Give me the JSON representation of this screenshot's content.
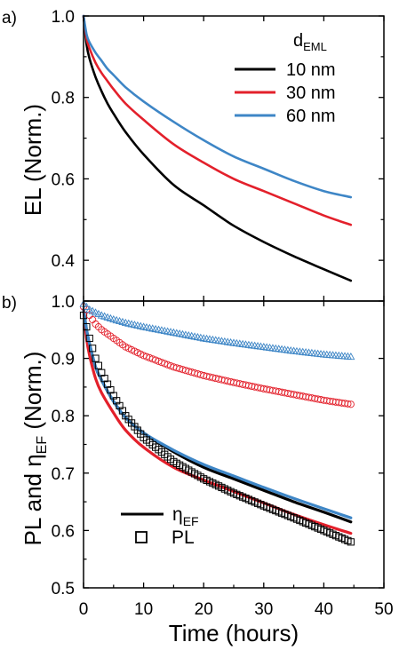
{
  "colors": {
    "10": "#000000",
    "30": "#e3202b",
    "60": "#3e86c6",
    "axis": "#000000"
  },
  "chart_data": [
    {
      "type": "line",
      "panel_label": "a)",
      "ylabel": "EL (Norm.)",
      "xlabel": "",
      "xlim": [
        0,
        50
      ],
      "ylim": [
        0.3,
        1.0
      ],
      "xticks": [
        0,
        10,
        20,
        30,
        40,
        50
      ],
      "yticks": [
        0.4,
        0.6,
        0.8,
        1.0
      ],
      "ytick_labels": [
        "0.4",
        "0.6",
        "0.8",
        "1.0"
      ],
      "legend": {
        "title": "d",
        "title_sub": "EML",
        "placement": "top-right",
        "entries": [
          "10 nm",
          "30 nm",
          "60 nm"
        ]
      },
      "series": [
        {
          "name": "10 nm",
          "color_key": "10",
          "x": [
            0,
            0.5,
            1,
            2,
            3,
            4,
            5,
            7,
            10,
            15,
            20,
            25,
            30,
            35,
            40,
            44.5
          ],
          "y": [
            1.0,
            0.93,
            0.895,
            0.85,
            0.815,
            0.785,
            0.76,
            0.715,
            0.66,
            0.585,
            0.535,
            0.485,
            0.445,
            0.41,
            0.378,
            0.35
          ]
        },
        {
          "name": "30 nm",
          "color_key": "30",
          "x": [
            0,
            0.5,
            1,
            2,
            3,
            4,
            5,
            7,
            10,
            15,
            20,
            25,
            30,
            35,
            40,
            44.5
          ],
          "y": [
            1.0,
            0.945,
            0.92,
            0.885,
            0.86,
            0.84,
            0.82,
            0.785,
            0.745,
            0.685,
            0.64,
            0.6,
            0.57,
            0.54,
            0.51,
            0.487
          ]
        },
        {
          "name": "60 nm",
          "color_key": "60",
          "x": [
            0,
            0.5,
            1,
            2,
            3,
            4,
            5,
            7,
            10,
            15,
            20,
            25,
            30,
            35,
            40,
            44.5
          ],
          "y": [
            1.0,
            0.955,
            0.935,
            0.91,
            0.89,
            0.87,
            0.855,
            0.825,
            0.79,
            0.74,
            0.695,
            0.655,
            0.625,
            0.595,
            0.57,
            0.555
          ]
        }
      ]
    },
    {
      "type": "scatter",
      "panel_label": "b)",
      "ylabel_main": "PL and ",
      "ylabel_symbol": "η",
      "ylabel_sub": "EF",
      "ylabel_tail": " (Norm.)",
      "xlabel": "Time (hours)",
      "xlim": [
        0,
        50
      ],
      "ylim": [
        0.5,
        1.0
      ],
      "xticks": [
        0,
        10,
        20,
        30,
        40,
        50
      ],
      "xtick_labels": [
        "0",
        "10",
        "20",
        "30",
        "40",
        "50"
      ],
      "yticks": [
        0.5,
        0.6,
        0.7,
        0.8,
        0.9,
        1.0
      ],
      "ytick_labels": [
        "0.5",
        "0.6",
        "0.7",
        "0.8",
        "0.9",
        "1.0"
      ],
      "legend": {
        "placement": "bottom-left",
        "line_symbol": "η",
        "line_sub": "EF",
        "marker_label": "PL"
      },
      "eta_lines": [
        {
          "color_key": "10",
          "x": [
            0,
            0.5,
            1,
            2,
            3,
            5,
            7,
            10,
            15,
            20,
            25,
            30,
            35,
            40,
            44.5
          ],
          "y": [
            0.985,
            0.95,
            0.925,
            0.885,
            0.862,
            0.825,
            0.797,
            0.77,
            0.737,
            0.71,
            0.69,
            0.67,
            0.65,
            0.632,
            0.615
          ]
        },
        {
          "color_key": "30",
          "x": [
            0,
            0.5,
            1,
            2,
            3,
            5,
            7,
            10,
            15,
            20,
            25,
            30,
            35,
            40,
            44.5
          ],
          "y": [
            0.985,
            0.935,
            0.905,
            0.865,
            0.84,
            0.805,
            0.775,
            0.745,
            0.71,
            0.688,
            0.668,
            0.648,
            0.628,
            0.61,
            0.595
          ]
        },
        {
          "color_key": "60",
          "x": [
            0,
            0.5,
            1,
            2,
            3,
            5,
            7,
            10,
            15,
            20,
            25,
            30,
            35,
            40,
            44.5
          ],
          "y": [
            0.985,
            0.95,
            0.925,
            0.885,
            0.862,
            0.825,
            0.797,
            0.77,
            0.74,
            0.715,
            0.695,
            0.675,
            0.656,
            0.638,
            0.622
          ]
        }
      ],
      "pl_series": [
        {
          "color_key": "10",
          "marker": "square",
          "x": [
            0,
            0.5,
            1,
            2,
            3,
            5,
            7,
            10,
            15,
            20,
            25,
            30,
            35,
            40,
            44.5
          ],
          "y": [
            0.975,
            0.955,
            0.935,
            0.9,
            0.875,
            0.835,
            0.8,
            0.762,
            0.72,
            0.69,
            0.665,
            0.643,
            0.622,
            0.6,
            0.58
          ]
        },
        {
          "color_key": "30",
          "marker": "circle",
          "x": [
            0,
            0.5,
            1,
            2,
            3,
            5,
            7,
            10,
            15,
            20,
            25,
            30,
            35,
            40,
            44.5
          ],
          "y": [
            0.99,
            0.985,
            0.975,
            0.96,
            0.95,
            0.935,
            0.92,
            0.905,
            0.885,
            0.87,
            0.858,
            0.847,
            0.837,
            0.827,
            0.82
          ]
        },
        {
          "color_key": "60",
          "marker": "triangle",
          "x": [
            0,
            0.5,
            1,
            2,
            3,
            5,
            7,
            10,
            15,
            20,
            25,
            30,
            35,
            40,
            44.5
          ],
          "y": [
            0.995,
            0.99,
            0.985,
            0.98,
            0.975,
            0.968,
            0.962,
            0.955,
            0.945,
            0.935,
            0.927,
            0.92,
            0.913,
            0.907,
            0.903
          ]
        }
      ]
    }
  ]
}
